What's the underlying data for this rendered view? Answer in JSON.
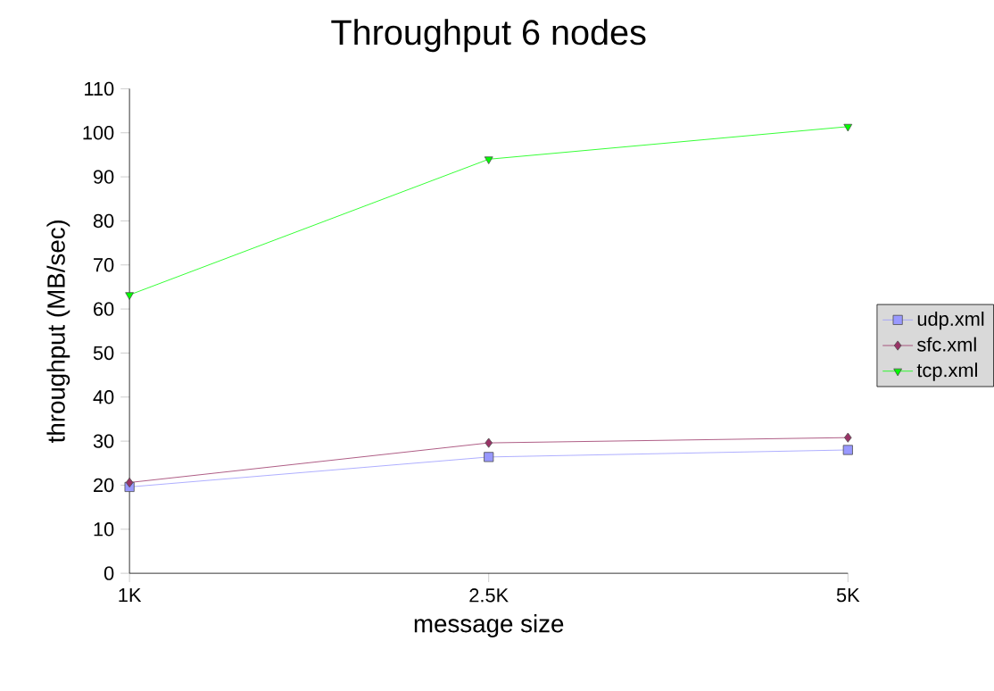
{
  "chart_data": {
    "type": "line",
    "title": "Throughput 6 nodes",
    "xlabel": "message size",
    "ylabel": "throughput (MB/sec)",
    "categories": [
      "1K",
      "2.5K",
      "5K"
    ],
    "series": [
      {
        "name": "udp.xml",
        "color": "#9999ff",
        "marker": "square",
        "values": [
          19.6,
          26.4,
          28.0
        ]
      },
      {
        "name": "sfc.xml",
        "color": "#993366",
        "marker": "diamond",
        "values": [
          20.6,
          29.6,
          30.8
        ]
      },
      {
        "name": "tcp.xml",
        "color": "#00ff00",
        "marker": "triangle",
        "values": [
          63.2,
          94.0,
          101.4
        ]
      }
    ],
    "ylim": [
      0,
      110
    ],
    "yticks": [
      0,
      10,
      20,
      30,
      40,
      50,
      60,
      70,
      80,
      90,
      100,
      110
    ],
    "grid": false,
    "legend": "right",
    "line_style": "solid"
  }
}
